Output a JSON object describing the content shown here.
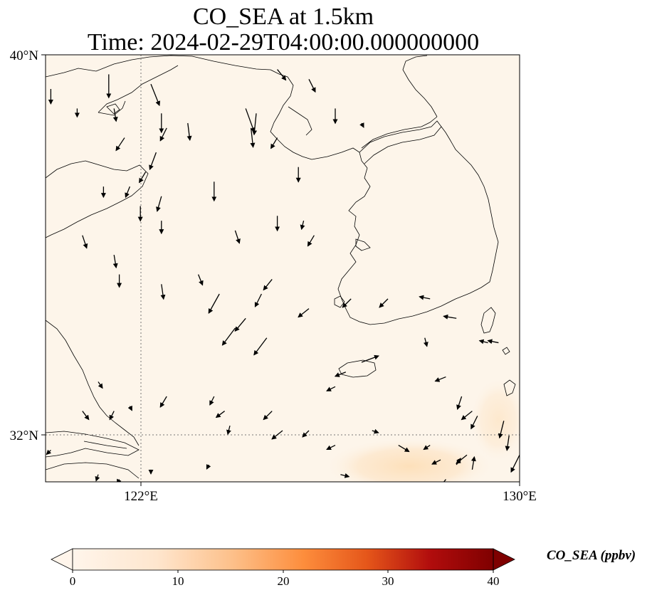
{
  "title_line1": "CO_SEA at 1.5km",
  "title_line2": "Time: 2024-02-29T04:00:00.000000000",
  "map": {
    "lon_range": [
      121,
      130
    ],
    "lat_range": [
      31.25,
      40
    ],
    "lat_ticks": [
      {
        "value": 40,
        "label": "40°N"
      },
      {
        "value": 32,
        "label": "32°N"
      }
    ],
    "lon_ticks": [
      {
        "value": 122,
        "label": "122°E"
      },
      {
        "value": 130,
        "label": "130°E"
      }
    ],
    "gridlines": "dotted",
    "background_color": "#fdf5ea",
    "high_region_color": "#fde3c2"
  },
  "colorbar": {
    "label": "CO_SEA (ppbv)",
    "min": 0,
    "max": 40,
    "ticks": [
      "0",
      "10",
      "20",
      "30",
      "40"
    ],
    "colors": [
      "#fff5eb",
      "#fdd0a2",
      "#fd8d3c",
      "#d94801",
      "#a50f15",
      "#67000d"
    ],
    "extend": "both"
  },
  "wind_arrows": [
    [
      121.1,
      39.3,
      0,
      -0.7
    ],
    [
      121.6,
      38.9,
      0,
      -0.4
    ],
    [
      122.2,
      39.6,
      0,
      -1.1
    ],
    [
      122.3,
      38.9,
      0.1,
      -0.6
    ],
    [
      122.5,
      38.3,
      -0.4,
      -0.6
    ],
    [
      122.9,
      37.6,
      -0.3,
      -0.5
    ],
    [
      122.6,
      37.3,
      -0.2,
      -0.5
    ],
    [
      123.0,
      39.4,
      0.4,
      -1.0
    ],
    [
      123.2,
      38.8,
      0,
      -0.9
    ],
    [
      123.3,
      38.5,
      -0.3,
      -0.6
    ],
    [
      123.1,
      38.0,
      -0.3,
      -0.8
    ],
    [
      123.2,
      37.1,
      -0.2,
      -0.7
    ],
    [
      123.7,
      38.6,
      0.1,
      -0.8
    ],
    [
      124.8,
      38.9,
      0.4,
      -1.1
    ],
    [
      125.0,
      38.8,
      -0.1,
      -1.0
    ],
    [
      124.9,
      38.5,
      0.1,
      -0.9
    ],
    [
      125.4,
      39.7,
      0.4,
      -0.5
    ],
    [
      126.0,
      39.5,
      0.3,
      -0.6
    ],
    [
      125.4,
      38.3,
      -0.3,
      -0.5
    ],
    [
      125.8,
      37.7,
      0,
      -0.7
    ],
    [
      126.5,
      38.9,
      0,
      -0.7
    ],
    [
      127.0,
      38.6,
      0.1,
      -0.2
    ],
    [
      122.1,
      37.3,
      0,
      -0.5
    ],
    [
      122.8,
      36.9,
      0,
      -0.7
    ],
    [
      123.2,
      36.6,
      0,
      -0.6
    ],
    [
      124.2,
      37.4,
      0,
      -0.9
    ],
    [
      124.6,
      36.4,
      0.2,
      -0.6
    ],
    [
      125.4,
      36.7,
      0,
      -0.7
    ],
    [
      125.9,
      36.6,
      -0.1,
      -0.4
    ],
    [
      126.1,
      36.3,
      -0.3,
      -0.5
    ],
    [
      121.7,
      36.3,
      0.2,
      -0.6
    ],
    [
      122.3,
      35.9,
      0.1,
      -0.6
    ],
    [
      122.4,
      35.5,
      0,
      -0.6
    ],
    [
      123.2,
      35.3,
      0.1,
      -0.7
    ],
    [
      123.9,
      35.5,
      0.2,
      -0.5
    ],
    [
      124.3,
      35.1,
      -0.5,
      -0.9
    ],
    [
      125.1,
      35.1,
      -0.3,
      -0.6
    ],
    [
      125.3,
      35.4,
      -0.4,
      -0.5
    ],
    [
      124.8,
      34.6,
      -0.5,
      -0.6
    ],
    [
      124.6,
      34.4,
      -0.6,
      -0.8
    ],
    [
      125.2,
      34.2,
      -0.6,
      -0.8
    ],
    [
      126.0,
      34.8,
      -0.5,
      -0.4
    ],
    [
      126.8,
      35.0,
      -0.4,
      -0.4
    ],
    [
      127.5,
      35.0,
      -0.4,
      -0.4
    ],
    [
      128.3,
      35.0,
      -0.5,
      0.1
    ],
    [
      128.8,
      34.6,
      -0.6,
      0.1
    ],
    [
      129.4,
      34.1,
      -0.4,
      0.1
    ],
    [
      129.6,
      34.1,
      -0.5,
      0.1
    ],
    [
      126.5,
      33.2,
      -0.4,
      -0.2
    ],
    [
      126.7,
      33.5,
      -0.5,
      -0.2
    ],
    [
      127.0,
      33.7,
      0.8,
      0.3
    ],
    [
      128.2,
      34.2,
      0.1,
      -0.4
    ],
    [
      128.6,
      33.4,
      -0.5,
      -0.2
    ],
    [
      128.9,
      33.0,
      -0.2,
      -0.6
    ],
    [
      129.1,
      32.7,
      -0.5,
      -0.4
    ],
    [
      129.2,
      32.6,
      -0.3,
      -0.6
    ],
    [
      129.7,
      32.5,
      -0.2,
      -0.8
    ],
    [
      122.0,
      33.3,
      0.2,
      -0.3
    ],
    [
      121.7,
      32.7,
      0.3,
      -0.4
    ],
    [
      122.3,
      32.7,
      -0.2,
      -0.4
    ],
    [
      122.6,
      32.8,
      0.1,
      -0.2
    ],
    [
      123.3,
      33.0,
      -0.3,
      -0.5
    ],
    [
      124.2,
      33.0,
      -0.2,
      -0.4
    ],
    [
      124.4,
      32.7,
      -0.4,
      -0.3
    ],
    [
      124.5,
      32.4,
      -0.1,
      -0.4
    ],
    [
      125.3,
      32.7,
      -0.4,
      -0.4
    ],
    [
      125.5,
      32.3,
      -0.5,
      -0.4
    ],
    [
      126.0,
      32.3,
      -0.3,
      -0.3
    ],
    [
      126.5,
      32.0,
      -0.4,
      -0.2
    ],
    [
      127.2,
      32.3,
      0.3,
      -0.1
    ],
    [
      127.7,
      32.0,
      0.5,
      -0.3
    ],
    [
      128.3,
      32.0,
      -0.3,
      -0.2
    ],
    [
      128.5,
      31.7,
      -0.4,
      -0.2
    ],
    [
      129.0,
      31.8,
      -0.5,
      -0.4
    ],
    [
      129.8,
      32.2,
      -0.1,
      -0.7
    ],
    [
      130.0,
      31.8,
      -0.4,
      -0.8
    ],
    [
      128.6,
      31.3,
      -0.4,
      -0.5
    ],
    [
      121.1,
      31.9,
      -0.2,
      -0.2
    ],
    [
      122.0,
      31.4,
      -0.1,
      -0.3
    ],
    [
      122.4,
      31.3,
      -0.1,
      -0.2
    ],
    [
      123.0,
      31.5,
      0,
      -0.2
    ],
    [
      124.1,
      31.6,
      -0.1,
      -0.2
    ],
    [
      124.7,
      31.1,
      0,
      -0.3
    ],
    [
      126.6,
      31.4,
      0.4,
      -0.1
    ],
    [
      128.8,
      31.6,
      0.2,
      0.3
    ],
    [
      129.1,
      31.5,
      0.1,
      0.6
    ]
  ]
}
